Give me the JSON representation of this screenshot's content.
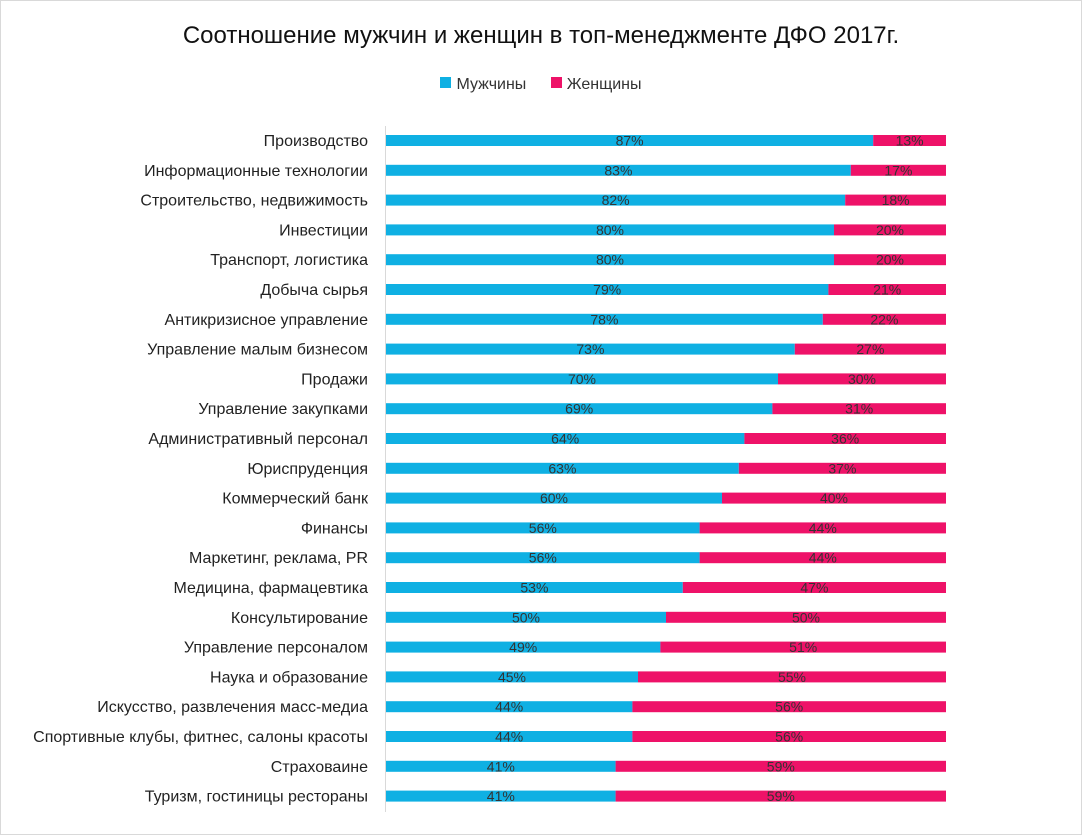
{
  "chart_data": {
    "type": "bar",
    "orientation": "horizontal",
    "stacked": "percent",
    "title": "Соотношение мужчин и женщин в топ-менеджменте ДФО 2017г.",
    "xlabel": "",
    "ylabel": "",
    "xlim": [
      0,
      100
    ],
    "grid": false,
    "legend_position": "top",
    "categories": [
      "Производство",
      "Информационные технологии",
      "Строительство, недвижимость",
      "Инвестиции",
      "Транспорт, логистика",
      "Добыча сырья",
      "Антикризисное управление",
      "Управление малым бизнесом",
      "Продажи",
      "Управление закупками",
      "Административный персонал",
      "Юриспруденция",
      "Коммерческий банк",
      "Финансы",
      "Маркетинг, реклама, PR",
      "Медицина, фармацевтика",
      "Консультирование",
      "Управление персоналом",
      "Наука и образование",
      "Искусство, развлечения масс-медиа",
      "Спортивные клубы, фитнес, салоны красоты",
      "Страховаине",
      "Туризм, гостиницы рестораны"
    ],
    "series": [
      {
        "name": "Мужчины",
        "color": "#0fb0e3",
        "values": [
          87,
          83,
          82,
          80,
          80,
          79,
          78,
          73,
          70,
          69,
          64,
          63,
          60,
          56,
          56,
          53,
          50,
          49,
          45,
          44,
          44,
          41,
          41
        ],
        "labels": [
          "87%",
          "83%",
          "82%",
          "80%",
          "80%",
          "79%",
          "78%",
          "73%",
          "70%",
          "69%",
          "64%",
          "63%",
          "60%",
          "56%",
          "56%",
          "53%",
          "50%",
          "49%",
          "45%",
          "44%",
          "44%",
          "41%",
          "41%"
        ]
      },
      {
        "name": "Женщины",
        "color": "#ee1268",
        "values": [
          13,
          17,
          18,
          20,
          20,
          21,
          22,
          27,
          30,
          31,
          36,
          37,
          40,
          44,
          44,
          47,
          50,
          51,
          55,
          56,
          56,
          59,
          59
        ],
        "labels": [
          "13%",
          "17%",
          "18%",
          "20%",
          "20%",
          "21%",
          "22%",
          "27%",
          "30%",
          "31%",
          "36%",
          "37%",
          "40%",
          "44%",
          "44%",
          "47%",
          "50%",
          "51%",
          "55%",
          "56%",
          "56%",
          "59%",
          "59%"
        ]
      }
    ]
  }
}
